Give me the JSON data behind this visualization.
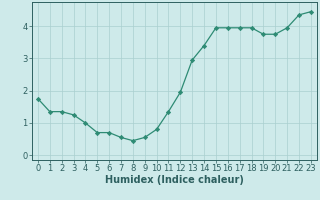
{
  "x": [
    0,
    1,
    2,
    3,
    4,
    5,
    6,
    7,
    8,
    9,
    10,
    11,
    12,
    13,
    14,
    15,
    16,
    17,
    18,
    19,
    20,
    21,
    22,
    23
  ],
  "y": [
    1.75,
    1.35,
    1.35,
    1.25,
    1.0,
    0.7,
    0.7,
    0.55,
    0.45,
    0.55,
    0.8,
    1.35,
    1.95,
    2.95,
    3.4,
    3.95,
    3.95,
    3.95,
    3.95,
    3.75,
    3.75,
    3.95,
    4.35,
    4.45
  ],
  "line_color": "#2e8b74",
  "marker": "D",
  "marker_size": 2.2,
  "bg_color": "#ceeaea",
  "grid_color": "#aacfcf",
  "axis_color": "#2e6060",
  "xlabel": "Humidex (Indice chaleur)",
  "xlabel_fontsize": 7,
  "tick_fontsize": 6,
  "yticks": [
    0,
    1,
    2,
    3,
    4
  ],
  "xtick_labels": [
    "0",
    "1",
    "2",
    "3",
    "4",
    "5",
    "6",
    "7",
    "8",
    "9",
    "10",
    "11",
    "12",
    "13",
    "14",
    "15",
    "16",
    "17",
    "18",
    "19",
    "20",
    "21",
    "22",
    "23"
  ],
  "xlim": [
    -0.5,
    23.5
  ],
  "ylim": [
    -0.15,
    4.75
  ]
}
